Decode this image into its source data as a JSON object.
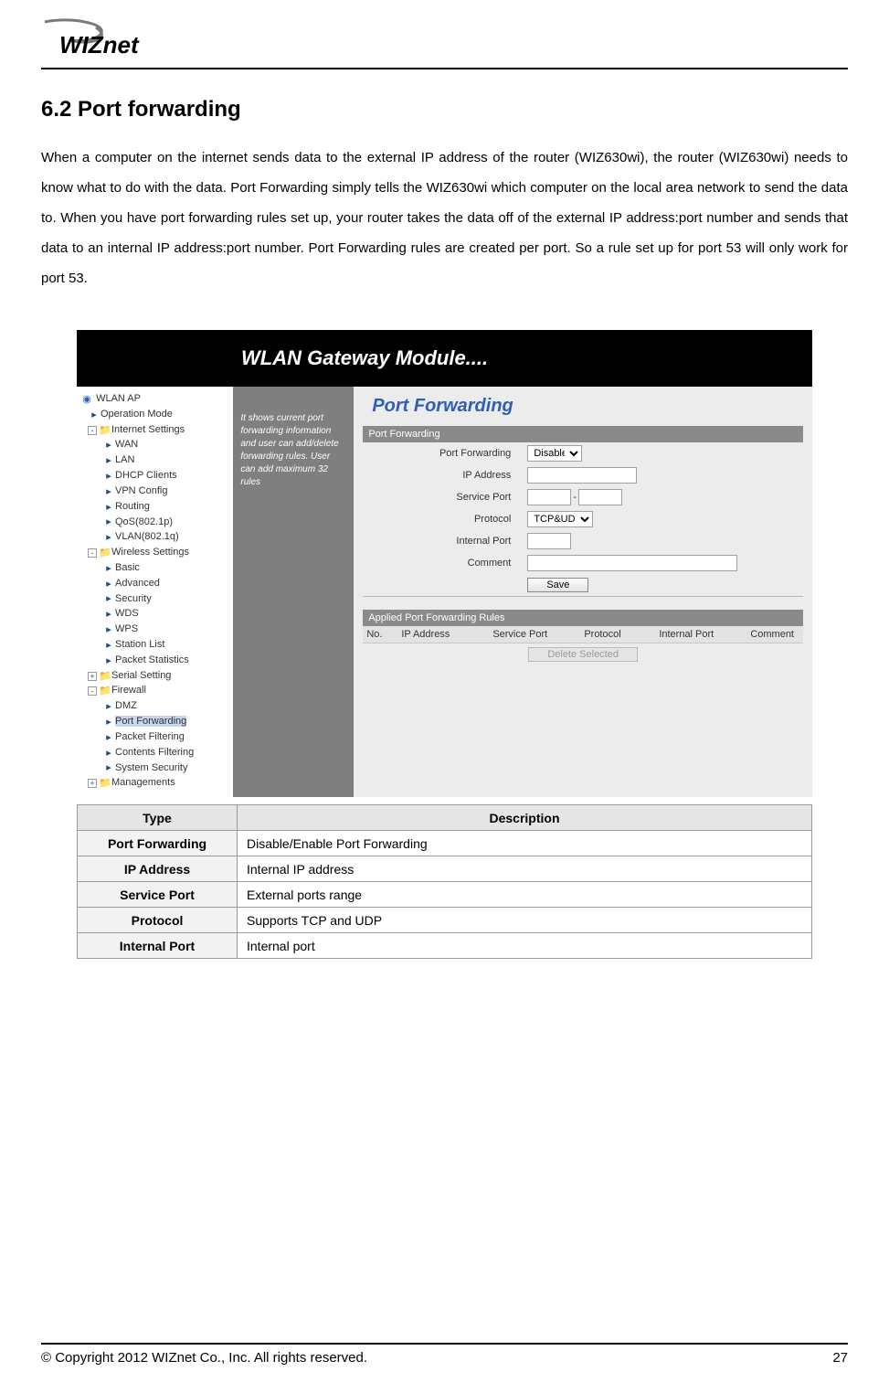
{
  "logo": {
    "brand": "WIZnet"
  },
  "section_title": "6.2 Port forwarding",
  "body_text": "When a computer on the internet sends data to the external IP address of the router (WIZ630wi), the router (WIZ630wi) needs to know what to do with the data. Port Forwarding simply tells the WIZ630wi which computer on the local area network to send the data to. When you have port forwarding rules set up, your router takes the data off of the external IP address:port number and sends that data to an internal IP address:port number. Port Forwarding rules are created per port. So a rule set up for port 53 will only work for port 53.",
  "screenshot": {
    "header": "WLAN Gateway Module....",
    "main_title": "Port Forwarding",
    "help_text": "It shows current port forwarding information and user can add/delete forwarding rules. User can add maximum 32 rules",
    "tree": {
      "root": "WLAN AP",
      "items": [
        {
          "label": "Operation Mode",
          "indent": 1,
          "icon": "arrow"
        },
        {
          "label": "Internet Settings",
          "indent": 1,
          "icon": "folder",
          "box": "-"
        },
        {
          "label": "WAN",
          "indent": 2,
          "icon": "arrow"
        },
        {
          "label": "LAN",
          "indent": 2,
          "icon": "arrow"
        },
        {
          "label": "DHCP Clients",
          "indent": 2,
          "icon": "arrow"
        },
        {
          "label": "VPN Config",
          "indent": 2,
          "icon": "arrow"
        },
        {
          "label": "Routing",
          "indent": 2,
          "icon": "arrow"
        },
        {
          "label": "QoS(802.1p)",
          "indent": 2,
          "icon": "arrow"
        },
        {
          "label": "VLAN(802.1q)",
          "indent": 2,
          "icon": "arrow"
        },
        {
          "label": "Wireless Settings",
          "indent": 1,
          "icon": "folder",
          "box": "-"
        },
        {
          "label": "Basic",
          "indent": 2,
          "icon": "arrow"
        },
        {
          "label": "Advanced",
          "indent": 2,
          "icon": "arrow"
        },
        {
          "label": "Security",
          "indent": 2,
          "icon": "arrow"
        },
        {
          "label": "WDS",
          "indent": 2,
          "icon": "arrow"
        },
        {
          "label": "WPS",
          "indent": 2,
          "icon": "arrow"
        },
        {
          "label": "Station List",
          "indent": 2,
          "icon": "arrow"
        },
        {
          "label": "Packet Statistics",
          "indent": 2,
          "icon": "arrow"
        },
        {
          "label": "Serial Setting",
          "indent": 1,
          "icon": "folder",
          "box": "+"
        },
        {
          "label": "Firewall",
          "indent": 1,
          "icon": "folder",
          "box": "-"
        },
        {
          "label": "DMZ",
          "indent": 2,
          "icon": "arrow"
        },
        {
          "label": "Port Forwarding",
          "indent": 2,
          "icon": "arrow",
          "selected": true
        },
        {
          "label": "Packet Filtering",
          "indent": 2,
          "icon": "arrow"
        },
        {
          "label": "Contents Filtering",
          "indent": 2,
          "icon": "arrow"
        },
        {
          "label": "System Security",
          "indent": 2,
          "icon": "arrow"
        },
        {
          "label": "Managements",
          "indent": 1,
          "icon": "folder",
          "box": "+"
        }
      ]
    },
    "form": {
      "panel_title": "Port Forwarding",
      "labels": {
        "port_forwarding": "Port Forwarding",
        "ip_address": "IP Address",
        "service_port": "Service Port",
        "protocol": "Protocol",
        "internal_port": "Internal Port",
        "comment": "Comment"
      },
      "port_forwarding_value": "Disable",
      "protocol_value": "TCP&UDP",
      "save_button": "Save"
    },
    "rules": {
      "panel_title": "Applied Port Forwarding Rules",
      "columns": {
        "no": "No.",
        "ip": "IP Address",
        "sp": "Service Port",
        "pr": "Protocol",
        "int": "Internal Port",
        "cm": "Comment"
      },
      "delete_button": "Delete Selected"
    }
  },
  "desc_table": {
    "head_type": "Type",
    "head_desc": "Description",
    "rows": [
      {
        "type": "Port Forwarding",
        "desc": "Disable/Enable Port Forwarding"
      },
      {
        "type": "IP Address",
        "desc": "Internal IP address"
      },
      {
        "type": "Service Port",
        "desc": "External ports range"
      },
      {
        "type": "Protocol",
        "desc": "Supports TCP and UDP"
      },
      {
        "type": "Internal Port",
        "desc": "Internal port"
      }
    ]
  },
  "footer": {
    "copyright": "© Copyright 2012 WIZnet Co., Inc. All rights reserved.",
    "page": "27"
  }
}
